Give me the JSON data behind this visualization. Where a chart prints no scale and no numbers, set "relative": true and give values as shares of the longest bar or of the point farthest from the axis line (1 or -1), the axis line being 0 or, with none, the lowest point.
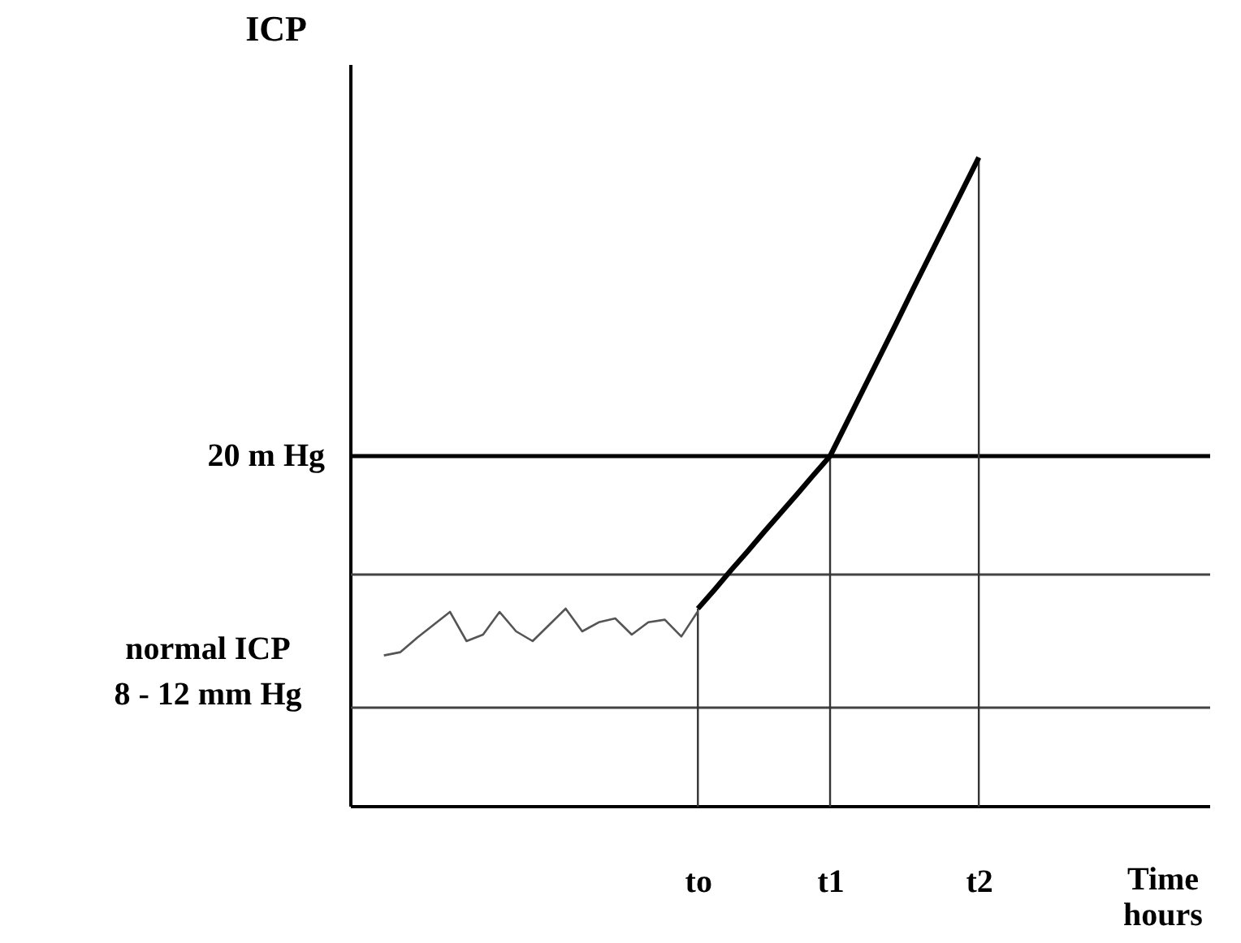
{
  "chart_data": {
    "type": "line",
    "relative": true,
    "ylabel": "ICP",
    "xlabel": "Time\nhours",
    "categories": [
      null,
      null,
      null,
      null,
      null,
      null,
      null,
      null,
      null,
      null,
      null,
      null,
      null,
      null,
      null,
      null,
      null,
      null,
      null,
      null,
      null,
      "to",
      null,
      null,
      null,
      null,
      null,
      null,
      null,
      "t1",
      null,
      null,
      null,
      null,
      null,
      null,
      null,
      null,
      "t2",
      null,
      null,
      null,
      null,
      null,
      null,
      null,
      null,
      null,
      null,
      null,
      null,
      null,
      null
    ],
    "series": [
      {
        "color": "#555555",
        "values": [
          null,
          null,
          0.233,
          0.238,
          0.26,
          0.28,
          0.3,
          0.255,
          0.265,
          0.3,
          0.27,
          0.255,
          0.28,
          0.305,
          0.27,
          0.284,
          0.29,
          0.265,
          0.284,
          0.288,
          0.262,
          0.301,
          null,
          null,
          null,
          null,
          null,
          null,
          null,
          null,
          null,
          null,
          null,
          null,
          null,
          null,
          null,
          null,
          null,
          null,
          null,
          null,
          null,
          null,
          null,
          null,
          null,
          null,
          null,
          null,
          null,
          null,
          null
        ]
      },
      {
        "color": "#000000",
        "values": [
          null,
          null,
          null,
          null,
          null,
          null,
          null,
          null,
          null,
          null,
          null,
          null,
          null,
          null,
          null,
          null,
          null,
          null,
          null,
          null,
          null,
          0.305,
          0.334,
          0.364,
          0.393,
          0.423,
          0.452,
          0.481,
          0.511,
          0.54,
          0.591,
          0.642,
          0.693,
          0.744,
          0.796,
          0.847,
          0.898,
          0.949,
          1.0,
          null,
          null,
          null,
          null,
          null,
          null,
          null,
          null,
          null,
          null,
          null,
          null,
          null,
          null
        ]
      }
    ],
    "ref_lines": [
      {
        "axis": "y",
        "value": 0.54,
        "label": "20 m Hg"
      },
      {
        "axis": "y",
        "value": 0.3575
      },
      {
        "axis": "y",
        "value": 0.1525
      },
      {
        "axis": "x",
        "value": "to"
      },
      {
        "axis": "x",
        "value": "t1"
      },
      {
        "axis": "x",
        "value": "t2"
      }
    ],
    "annotations": [
      "normal ICP\n8 - 12 mm Hg"
    ],
    "grid": false,
    "marker": "none",
    "line_style": "solid"
  }
}
